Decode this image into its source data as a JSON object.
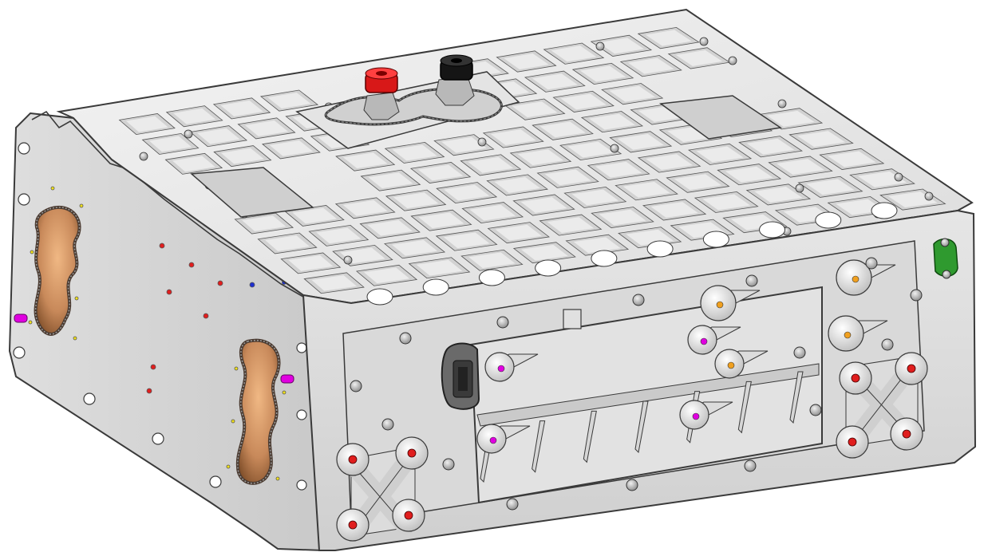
{
  "image": {
    "subject": "",
    "colors": {
      "background": "#ffffff",
      "body_light": "#ececec",
      "body_mid": "#d4d4d4",
      "body_dark": "#a9a9a9",
      "edge": "#3a3a3a",
      "copper": "#c8895a",
      "copper_dark": "#7a4a26",
      "terminal_positive": "#e02020",
      "terminal_negative": "#151515",
      "ground_clip": "#2f9a2f",
      "hole_red": "#e01e1e",
      "hole_magenta": "#e000e0",
      "hole_orange": "#f0a020",
      "hole_yellow": "#f2e21a",
      "hole_blue": "#1e2fd0"
    }
  }
}
